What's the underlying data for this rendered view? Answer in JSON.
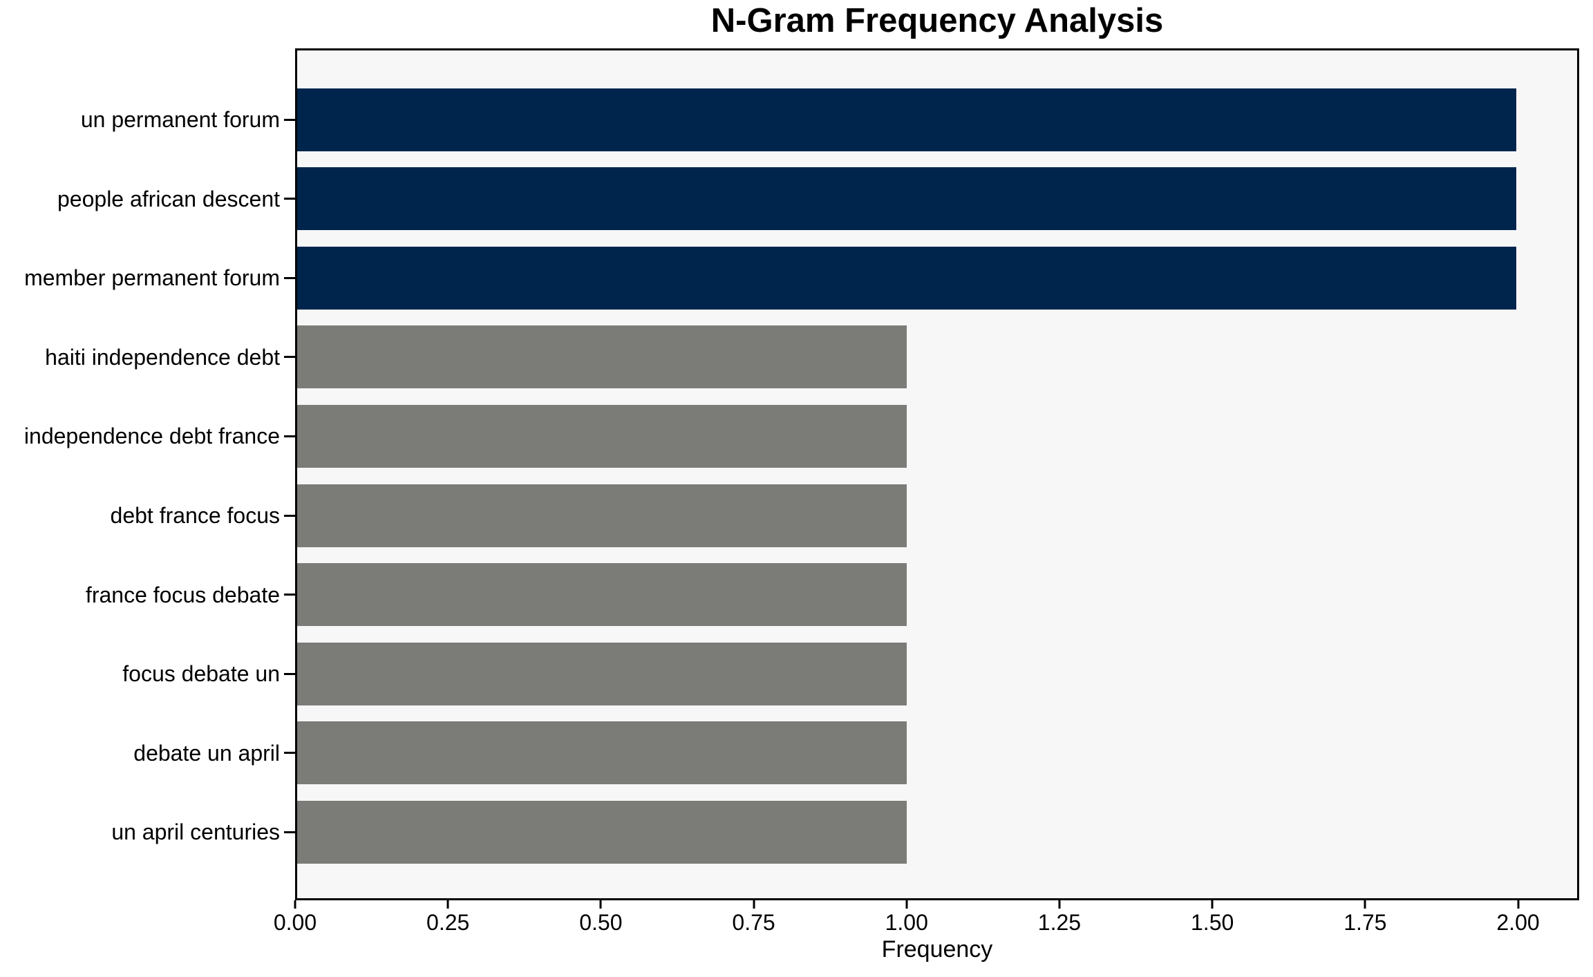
{
  "chart_data": {
    "type": "bar",
    "orientation": "horizontal",
    "title": "N-Gram Frequency Analysis",
    "xlabel": "Frequency",
    "ylabel": "",
    "categories": [
      "un permanent forum",
      "people african descent",
      "member permanent forum",
      "haiti independence debt",
      "independence debt france",
      "debt france focus",
      "france focus debate",
      "focus debate un",
      "debate un april",
      "un april centuries"
    ],
    "values": [
      2,
      2,
      2,
      1,
      1,
      1,
      1,
      1,
      1,
      1
    ],
    "bar_colors": [
      "#00254d",
      "#00254d",
      "#00254d",
      "#7b7b78",
      "#7b7b78",
      "#7b7b78",
      "#7b7b78",
      "#7b7b78",
      "#7b7b78",
      "#7b7b78"
    ],
    "xlim": [
      0,
      2.1
    ],
    "xticks": [
      0,
      0.25,
      0.5,
      0.75,
      1.0,
      1.25,
      1.5,
      1.75,
      2.0
    ],
    "xtick_labels": [
      "0.00",
      "0.25",
      "0.50",
      "0.75",
      "1.00",
      "1.25",
      "1.50",
      "1.75",
      "2.00"
    ],
    "grid": false,
    "legend": null,
    "colors": {
      "high_frequency_bar": "#00254d",
      "low_frequency_bar": "#7b7b78",
      "plot_background": "#f7f7f7",
      "figure_background": "#ffffff",
      "axis_and_text": "#000000"
    }
  }
}
